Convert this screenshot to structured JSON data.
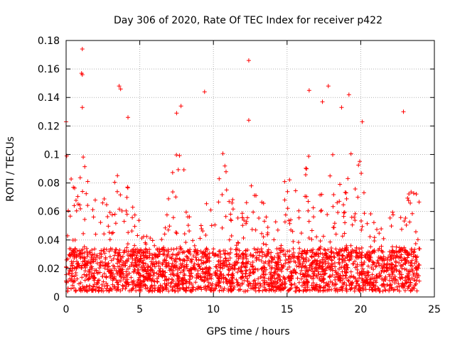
{
  "chart_data": {
    "type": "scatter",
    "title": "Day 306 of 2020, Rate Of TEC Index for receiver p422",
    "xlabel": "GPS time / hours",
    "ylabel": "ROTI / TECUs",
    "xlim": [
      0,
      25
    ],
    "ylim": [
      0,
      0.18
    ],
    "x_ticks": [
      "0",
      "5",
      "10",
      "15",
      "20",
      "25"
    ],
    "y_ticks": [
      "0",
      "0.02",
      "0.04",
      "0.06",
      "0.08",
      "0.1",
      "0.12",
      "0.14",
      "0.16",
      "0.18"
    ],
    "grid": true,
    "marker": "plus",
    "color": "#ff0000",
    "notable_points": [
      {
        "x": 1.1,
        "y": 0.174
      },
      {
        "x": 1.05,
        "y": 0.157
      },
      {
        "x": 1.1,
        "y": 0.156
      },
      {
        "x": 12.4,
        "y": 0.166
      },
      {
        "x": 3.6,
        "y": 0.148
      },
      {
        "x": 3.7,
        "y": 0.146
      },
      {
        "x": 17.8,
        "y": 0.148
      },
      {
        "x": 16.5,
        "y": 0.145
      },
      {
        "x": 9.4,
        "y": 0.144
      },
      {
        "x": 19.2,
        "y": 0.142
      },
      {
        "x": 7.8,
        "y": 0.134
      },
      {
        "x": 1.1,
        "y": 0.133
      },
      {
        "x": 22.9,
        "y": 0.13
      },
      {
        "x": 7.5,
        "y": 0.129
      },
      {
        "x": 4.2,
        "y": 0.126
      },
      {
        "x": 0.0,
        "y": 0.123
      },
      {
        "x": 20.1,
        "y": 0.123
      },
      {
        "x": 12.4,
        "y": 0.124
      },
      {
        "x": 18.7,
        "y": 0.133
      },
      {
        "x": 17.4,
        "y": 0.137
      }
    ],
    "envelope": {
      "x": [
        0,
        0.5,
        1,
        1.5,
        2,
        2.5,
        3,
        3.5,
        4,
        4.5,
        5,
        5.5,
        6,
        6.5,
        7,
        7.5,
        8,
        8.5,
        9,
        9.5,
        10,
        10.5,
        11,
        11.5,
        12,
        12.5,
        13,
        13.5,
        14,
        14.5,
        15,
        15.5,
        16,
        16.5,
        17,
        17.5,
        18,
        18.5,
        19,
        19.5,
        20,
        20.5,
        21,
        21.5,
        22,
        22.5,
        23,
        23.5,
        24
      ],
      "y": [
        0.11,
        0.075,
        0.1,
        0.085,
        0.07,
        0.065,
        0.07,
        0.12,
        0.1,
        0.07,
        0.05,
        0.04,
        0.035,
        0.04,
        0.09,
        0.11,
        0.09,
        0.04,
        0.035,
        0.08,
        0.06,
        0.1,
        0.09,
        0.06,
        0.07,
        0.085,
        0.075,
        0.06,
        0.05,
        0.06,
        0.09,
        0.07,
        0.08,
        0.1,
        0.07,
        0.07,
        0.11,
        0.08,
        0.1,
        0.11,
        0.09,
        0.06,
        0.05,
        0.055,
        0.06,
        0.055,
        0.07,
        0.07,
        0.07
      ]
    }
  }
}
